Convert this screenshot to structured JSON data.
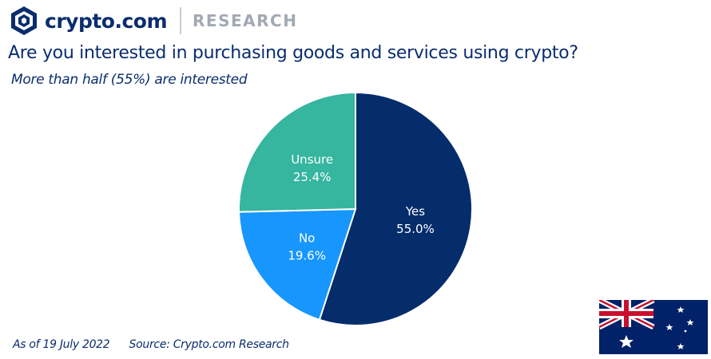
{
  "brand": {
    "logo_text": "crypto.com",
    "section": "RESEARCH"
  },
  "title": "Are you interested in purchasing goods and services using crypto?",
  "subtitle": "More than half (55%) are interested",
  "footer": {
    "date": "As of 19 July 2022",
    "source": "Source: Crypto.com Research"
  },
  "chart_data": {
    "type": "pie",
    "title": "Are you interested in purchasing goods and services using crypto?",
    "subtitle": "More than half (55%) are interested",
    "start_angle": "12 o'clock, clockwise",
    "slices": [
      {
        "label": "Yes",
        "value": 55.0,
        "value_label": "55.0%",
        "color": "#052c6b"
      },
      {
        "label": "No",
        "value": 19.6,
        "value_label": "19.6%",
        "color": "#1796fd"
      },
      {
        "label": "Unsure",
        "value": 25.4,
        "value_label": "25.4%",
        "color": "#36b59f"
      }
    ],
    "legend": "none"
  },
  "colors": {
    "brand": "#0a2d6e",
    "muted": "#a3a9b3"
  },
  "icons": {
    "logo": "crypto-com-lion-icon",
    "flag": "australia-flag-icon"
  }
}
